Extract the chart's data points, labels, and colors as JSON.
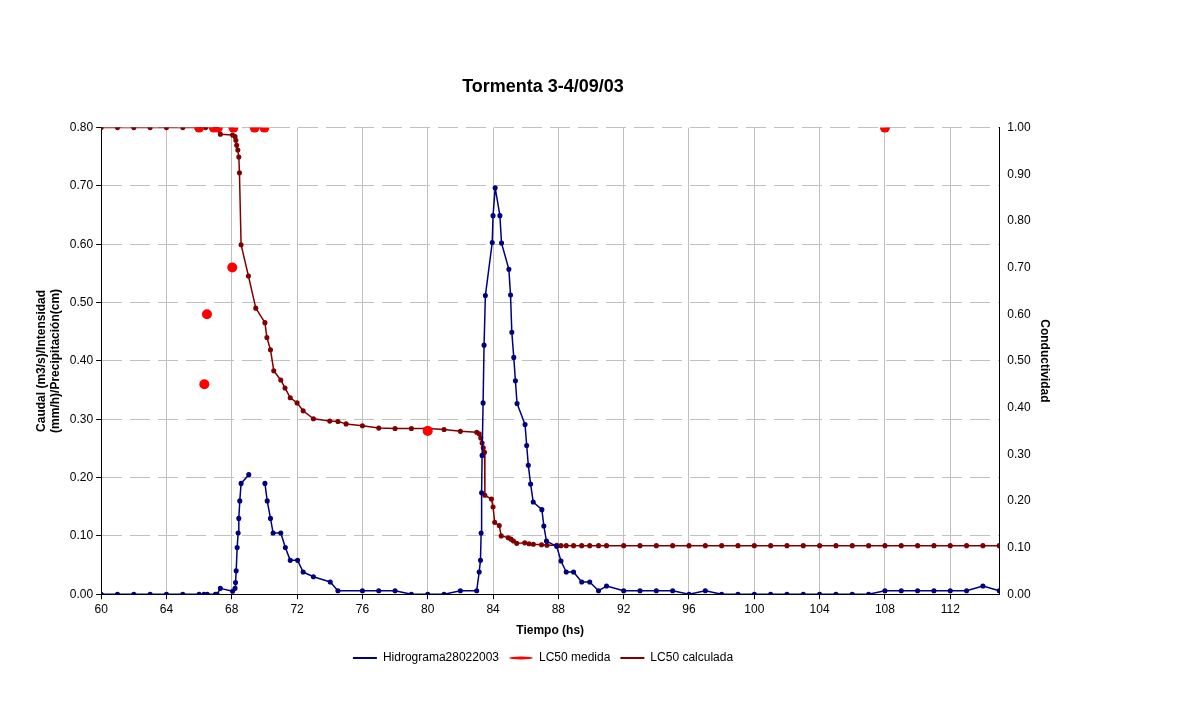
{
  "chart_data": {
    "type": "line",
    "title": "Tormenta 3-4/09/03",
    "xlabel": "Tiempo (hs)",
    "ylabel": "Caudal (m3/s)/Intensidad (mm/h)/Precipitación(cm)",
    "y2label": "Conductividad",
    "xlim": [
      60,
      115
    ],
    "xticks": [
      60,
      64,
      68,
      72,
      76,
      80,
      84,
      88,
      92,
      96,
      100,
      104,
      108,
      112
    ],
    "ylim": [
      0,
      0.8
    ],
    "yticks": [
      {
        "value": 0,
        "label": "0.00"
      },
      {
        "value": 0.1,
        "label": "0.10"
      },
      {
        "value": 0.2,
        "label": "0.20"
      },
      {
        "value": 0.3,
        "label": "0.30"
      },
      {
        "value": 0.4,
        "label": "0.40"
      },
      {
        "value": 0.5,
        "label": "0.50"
      },
      {
        "value": 0.6,
        "label": "0.60"
      },
      {
        "value": 0.7,
        "label": "0.70"
      },
      {
        "value": 0.8,
        "label": "0.80"
      }
    ],
    "y2lim": [
      0,
      1
    ],
    "y2ticks": [
      {
        "value": 0,
        "label": "0.00"
      },
      {
        "value": 0.1,
        "label": "0.10"
      },
      {
        "value": 0.2,
        "label": "0.20"
      },
      {
        "value": 0.3,
        "label": "0.30"
      },
      {
        "value": 0.4,
        "label": "0.40"
      },
      {
        "value": 0.5,
        "label": "0.50"
      },
      {
        "value": 0.6,
        "label": "0.60"
      },
      {
        "value": 0.7,
        "label": "0.70"
      },
      {
        "value": 0.8,
        "label": "0.80"
      },
      {
        "value": 0.9,
        "label": "0.90"
      },
      {
        "value": 1,
        "label": "1.00"
      }
    ],
    "grid": true,
    "legend": "bottom",
    "marker": "circle",
    "series": [
      {
        "name": "Hidrograma28022003",
        "type": "line",
        "color": "#000080",
        "x": [
          60,
          61,
          62,
          63,
          64,
          65,
          66,
          66.3,
          66.5,
          67,
          67.1,
          67.3,
          68.05,
          68.2,
          68.23,
          68.27,
          68.33,
          68.39,
          68.43,
          68.49,
          68.57,
          69.04,
          69.5,
          70.03,
          70.17,
          70.37,
          70.53,
          71,
          71.28,
          71.58,
          72.03,
          72.37,
          73,
          74.03,
          74.5,
          76,
          77,
          78,
          79,
          80,
          81,
          82,
          83,
          83.15,
          83.23,
          83.27,
          83.3,
          83.33,
          83.39,
          83.45,
          83.53,
          83.95,
          84,
          84.13,
          84.42,
          84.52,
          84.97,
          85.07,
          85.15,
          85.27,
          85.37,
          85.47,
          85.96,
          86.06,
          86.16,
          86.3,
          86.46,
          86.99,
          87.11,
          87.27,
          87.9,
          88.16,
          88.48,
          88.93,
          89.43,
          89.92,
          90.46,
          90.95,
          92,
          93,
          94,
          95,
          96,
          97,
          98,
          99,
          100,
          101,
          102,
          103,
          104,
          105,
          106,
          107,
          108,
          109,
          110,
          111,
          112,
          113,
          114,
          115
        ],
        "values": [
          0,
          0,
          0,
          0,
          0,
          0,
          0,
          0,
          0,
          0,
          0,
          0.01,
          0.005,
          0.01,
          0.02,
          0.04,
          0.08,
          0.105,
          0.13,
          0.16,
          0.19,
          0.205,
          null,
          0.19,
          0.16,
          0.13,
          0.105,
          0.105,
          0.08,
          0.058,
          0.058,
          0.038,
          0.03,
          0.021,
          0.006,
          0.006,
          0.006,
          0.006,
          0,
          0,
          0,
          0.006,
          0.006,
          0.038,
          0.058,
          0.105,
          0.174,
          0.238,
          0.328,
          0.427,
          0.512,
          0.603,
          0.649,
          0.697,
          0.649,
          0.602,
          0.557,
          0.513,
          0.449,
          0.406,
          0.366,
          0.327,
          0.291,
          0.255,
          0.221,
          0.189,
          0.158,
          0.145,
          0.117,
          0.091,
          0.082,
          0.057,
          0.038,
          0.038,
          0.021,
          0.021,
          0.006,
          0.014,
          0.006,
          0.006,
          0.006,
          0.006,
          0,
          0.006,
          0,
          0,
          0,
          0,
          0,
          0,
          0,
          0,
          0,
          0,
          0.006,
          0.006,
          0.006,
          0.006,
          0.006,
          0.006,
          0.014,
          0.006
        ]
      },
      {
        "name": "LC50 medida",
        "type": "scatter",
        "axis": "y2",
        "color": "#ff0000",
        "x": [
          66,
          66.32,
          66.48,
          66.9,
          67.15,
          68.03,
          68.1,
          69.4,
          70,
          80,
          108
        ],
        "values": [
          1,
          0.45,
          0.6,
          1,
          1,
          0.7,
          1,
          1,
          1,
          0.35,
          1
        ]
      },
      {
        "name": "LC50 calculada",
        "type": "line",
        "axis": "y2",
        "color": "#800000",
        "x": [
          60,
          61,
          62,
          63,
          64,
          65,
          66,
          66.4,
          67,
          67.1,
          67.3,
          68.05,
          68.2,
          68.25,
          68.3,
          68.37,
          68.43,
          68.47,
          68.57,
          69.02,
          69.47,
          70.03,
          70.15,
          70.37,
          70.57,
          71,
          71.26,
          71.58,
          72,
          72.37,
          73,
          74,
          74.5,
          75,
          76,
          77,
          78,
          79,
          80,
          81,
          82,
          83,
          83.15,
          83.25,
          83.33,
          83.4,
          83.48,
          83.5,
          83.9,
          84,
          84.1,
          84.38,
          84.5,
          84.93,
          85.1,
          85.25,
          85.45,
          85.94,
          86.2,
          86.47,
          86.97,
          87.3,
          87.9,
          88.16,
          88.48,
          88.93,
          89.43,
          89.92,
          90.46,
          90.95,
          92,
          93,
          94,
          95,
          96,
          97,
          98,
          99,
          100,
          101,
          102,
          103,
          104,
          105,
          106,
          107,
          108,
          109,
          110,
          111,
          112,
          113,
          114,
          115
        ],
        "values": [
          1,
          1,
          1,
          1,
          1,
          1,
          1,
          1,
          1,
          1,
          0.986,
          0.984,
          0.981,
          0.973,
          0.962,
          0.952,
          0.937,
          0.903,
          0.749,
          0.682,
          0.613,
          0.582,
          0.55,
          0.524,
          0.479,
          0.459,
          0.442,
          0.421,
          0.41,
          0.393,
          0.376,
          0.371,
          0.37,
          0.365,
          0.361,
          0.356,
          0.355,
          0.355,
          0.355,
          0.353,
          0.349,
          0.347,
          0.344,
          0.335,
          0.324,
          0.314,
          0.304,
          0.212,
          0.204,
          0.187,
          0.154,
          0.147,
          0.125,
          0.121,
          0.118,
          0.114,
          0.109,
          0.11,
          0.108,
          0.107,
          0.106,
          0.105,
          0.105,
          0.104,
          0.104,
          0.104,
          0.104,
          0.104,
          0.104,
          0.104,
          0.104,
          0.104,
          0.104,
          0.104,
          0.104,
          0.104,
          0.104,
          0.104,
          0.104,
          0.104,
          0.104,
          0.104,
          0.104,
          0.104,
          0.104,
          0.104,
          0.104,
          0.104,
          0.104,
          0.104,
          0.104,
          0.104,
          0.104,
          0.104
        ]
      }
    ]
  }
}
